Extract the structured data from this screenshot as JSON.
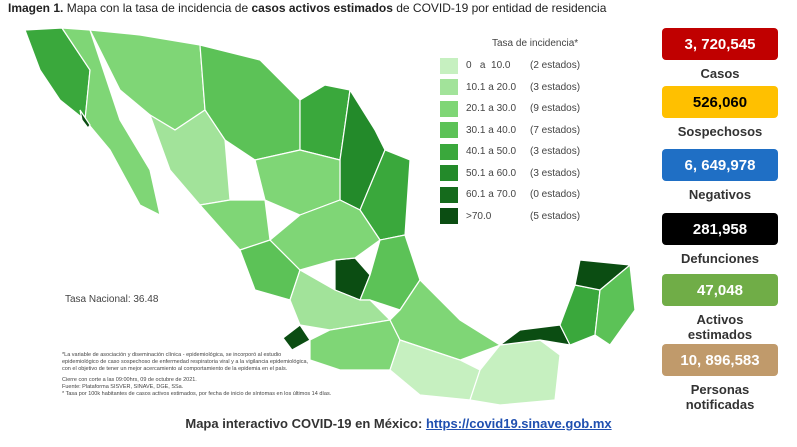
{
  "header": {
    "title_parts": [
      "Imagen 1.",
      "Mapa con la tasa de incidencia de",
      "casos activos estimados",
      "de COVID-19 por entidad de residencia"
    ]
  },
  "legend": {
    "title": "Tasa de incidencia*",
    "rows": [
      {
        "range": "0   a  10.0",
        "count": "(2 estados)",
        "color": "#c6f0c0"
      },
      {
        "range": "10.1 a 20.0",
        "count": "(3 estados)",
        "color": "#a2e39a"
      },
      {
        "range": "20.1 a 30.0",
        "count": "(9 estados)",
        "color": "#7fd676"
      },
      {
        "range": "30.1 a 40.0",
        "count": "(7 estados)",
        "color": "#5cc257"
      },
      {
        "range": "40.1 a 50.0",
        "count": "(3 estados)",
        "color": "#3aa83c"
      },
      {
        "range": "50.1 a 60.0",
        "count": "(3 estados)",
        "color": "#238a2a"
      },
      {
        "range": "60.1 a 70.0",
        "count": "(0 estados)",
        "color": "#156b1c"
      },
      {
        "range": ">70.0",
        "count": "(5 estados)",
        "color": "#0b4d12"
      }
    ]
  },
  "national_rate": "Tasa Nacional: 36.48",
  "notes": [
    "*La variable de asociación y diseminación clínica - epidemiológica, se incorporó al estudio",
    "epidemiológico de caso sospechoso de enfermedad respiratoria viral y a la vigilancia epidemiológica,",
    "con el objetivo de tener un mejor acercamiento al comportamiento de la epidemia en el país.",
    "Cierre con corte a las 09:00hrs, 09 de octubre de 2021.",
    "Fuente: Plataforma SISVER, SINAVE, DGE, SSa.",
    "* Tasa por 100k habitantes de casos activos estimados, por fecha de inicio de síntomas en los últimos 14 días."
  ],
  "boxes": [
    {
      "value": "3, 720,545",
      "label": [
        "Casos"
      ],
      "color": "#c00000",
      "text_color": "#ffffff"
    },
    {
      "value": "526,060",
      "label": [
        "Sospechosos"
      ],
      "color": "#ffc000",
      "text_color": "#000000"
    },
    {
      "value": "6, 649,978",
      "label": [
        "Negativos"
      ],
      "color": "#1f6fc5",
      "text_color": "#ffffff"
    },
    {
      "value": "281,958",
      "label": [
        "Defunciones"
      ],
      "color": "#000000",
      "text_color": "#ffffff"
    },
    {
      "value": "47,048",
      "label": [
        "Activos",
        "estimados"
      ],
      "color": "#70ad47",
      "text_color": "#ffffff"
    },
    {
      "value": "10, 896,583",
      "label": [
        "Personas",
        "notificadas"
      ],
      "color": "#c09a6b",
      "text_color": "#ffffff"
    }
  ],
  "footer": {
    "text": "Mapa interactivo COVID-19 en México:",
    "link": "https://covid19.sinave.gob.mx"
  }
}
